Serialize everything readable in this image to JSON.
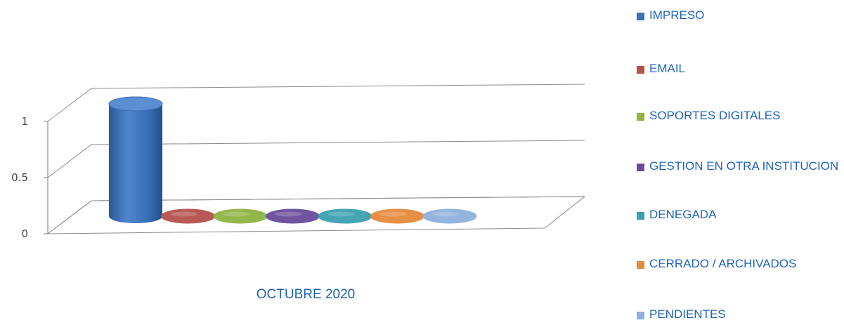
{
  "chart_data": {
    "type": "bar",
    "title": "",
    "xlabel": "OCTUBRE 2020",
    "ylabel": "",
    "ylim": [
      0,
      1
    ],
    "yticks": [
      "0",
      "0.5",
      "1"
    ],
    "categories": [
      "OCTUBRE 2020"
    ],
    "series": [
      {
        "name": "IMPRESO",
        "values": [
          1
        ],
        "color": "#3b6fb6"
      },
      {
        "name": "EMAIL",
        "values": [
          0
        ],
        "color": "#b5514c"
      },
      {
        "name": "SOPORTES DIGITALES",
        "values": [
          0
        ],
        "color": "#8fb443"
      },
      {
        "name": "GESTION EN OTRA INSTITUCION",
        "values": [
          0
        ],
        "color": "#6a4b9a"
      },
      {
        "name": "DENEGADA",
        "values": [
          0
        ],
        "color": "#3aa0b0"
      },
      {
        "name": "CERRADO / ARCHIVADOS",
        "values": [
          0
        ],
        "color": "#e58a3c"
      },
      {
        "name": "PENDIENTES",
        "values": [
          0
        ],
        "color": "#8fb0dc"
      }
    ],
    "legend_position": "right",
    "grid": true,
    "style": "3d-cylinder"
  }
}
